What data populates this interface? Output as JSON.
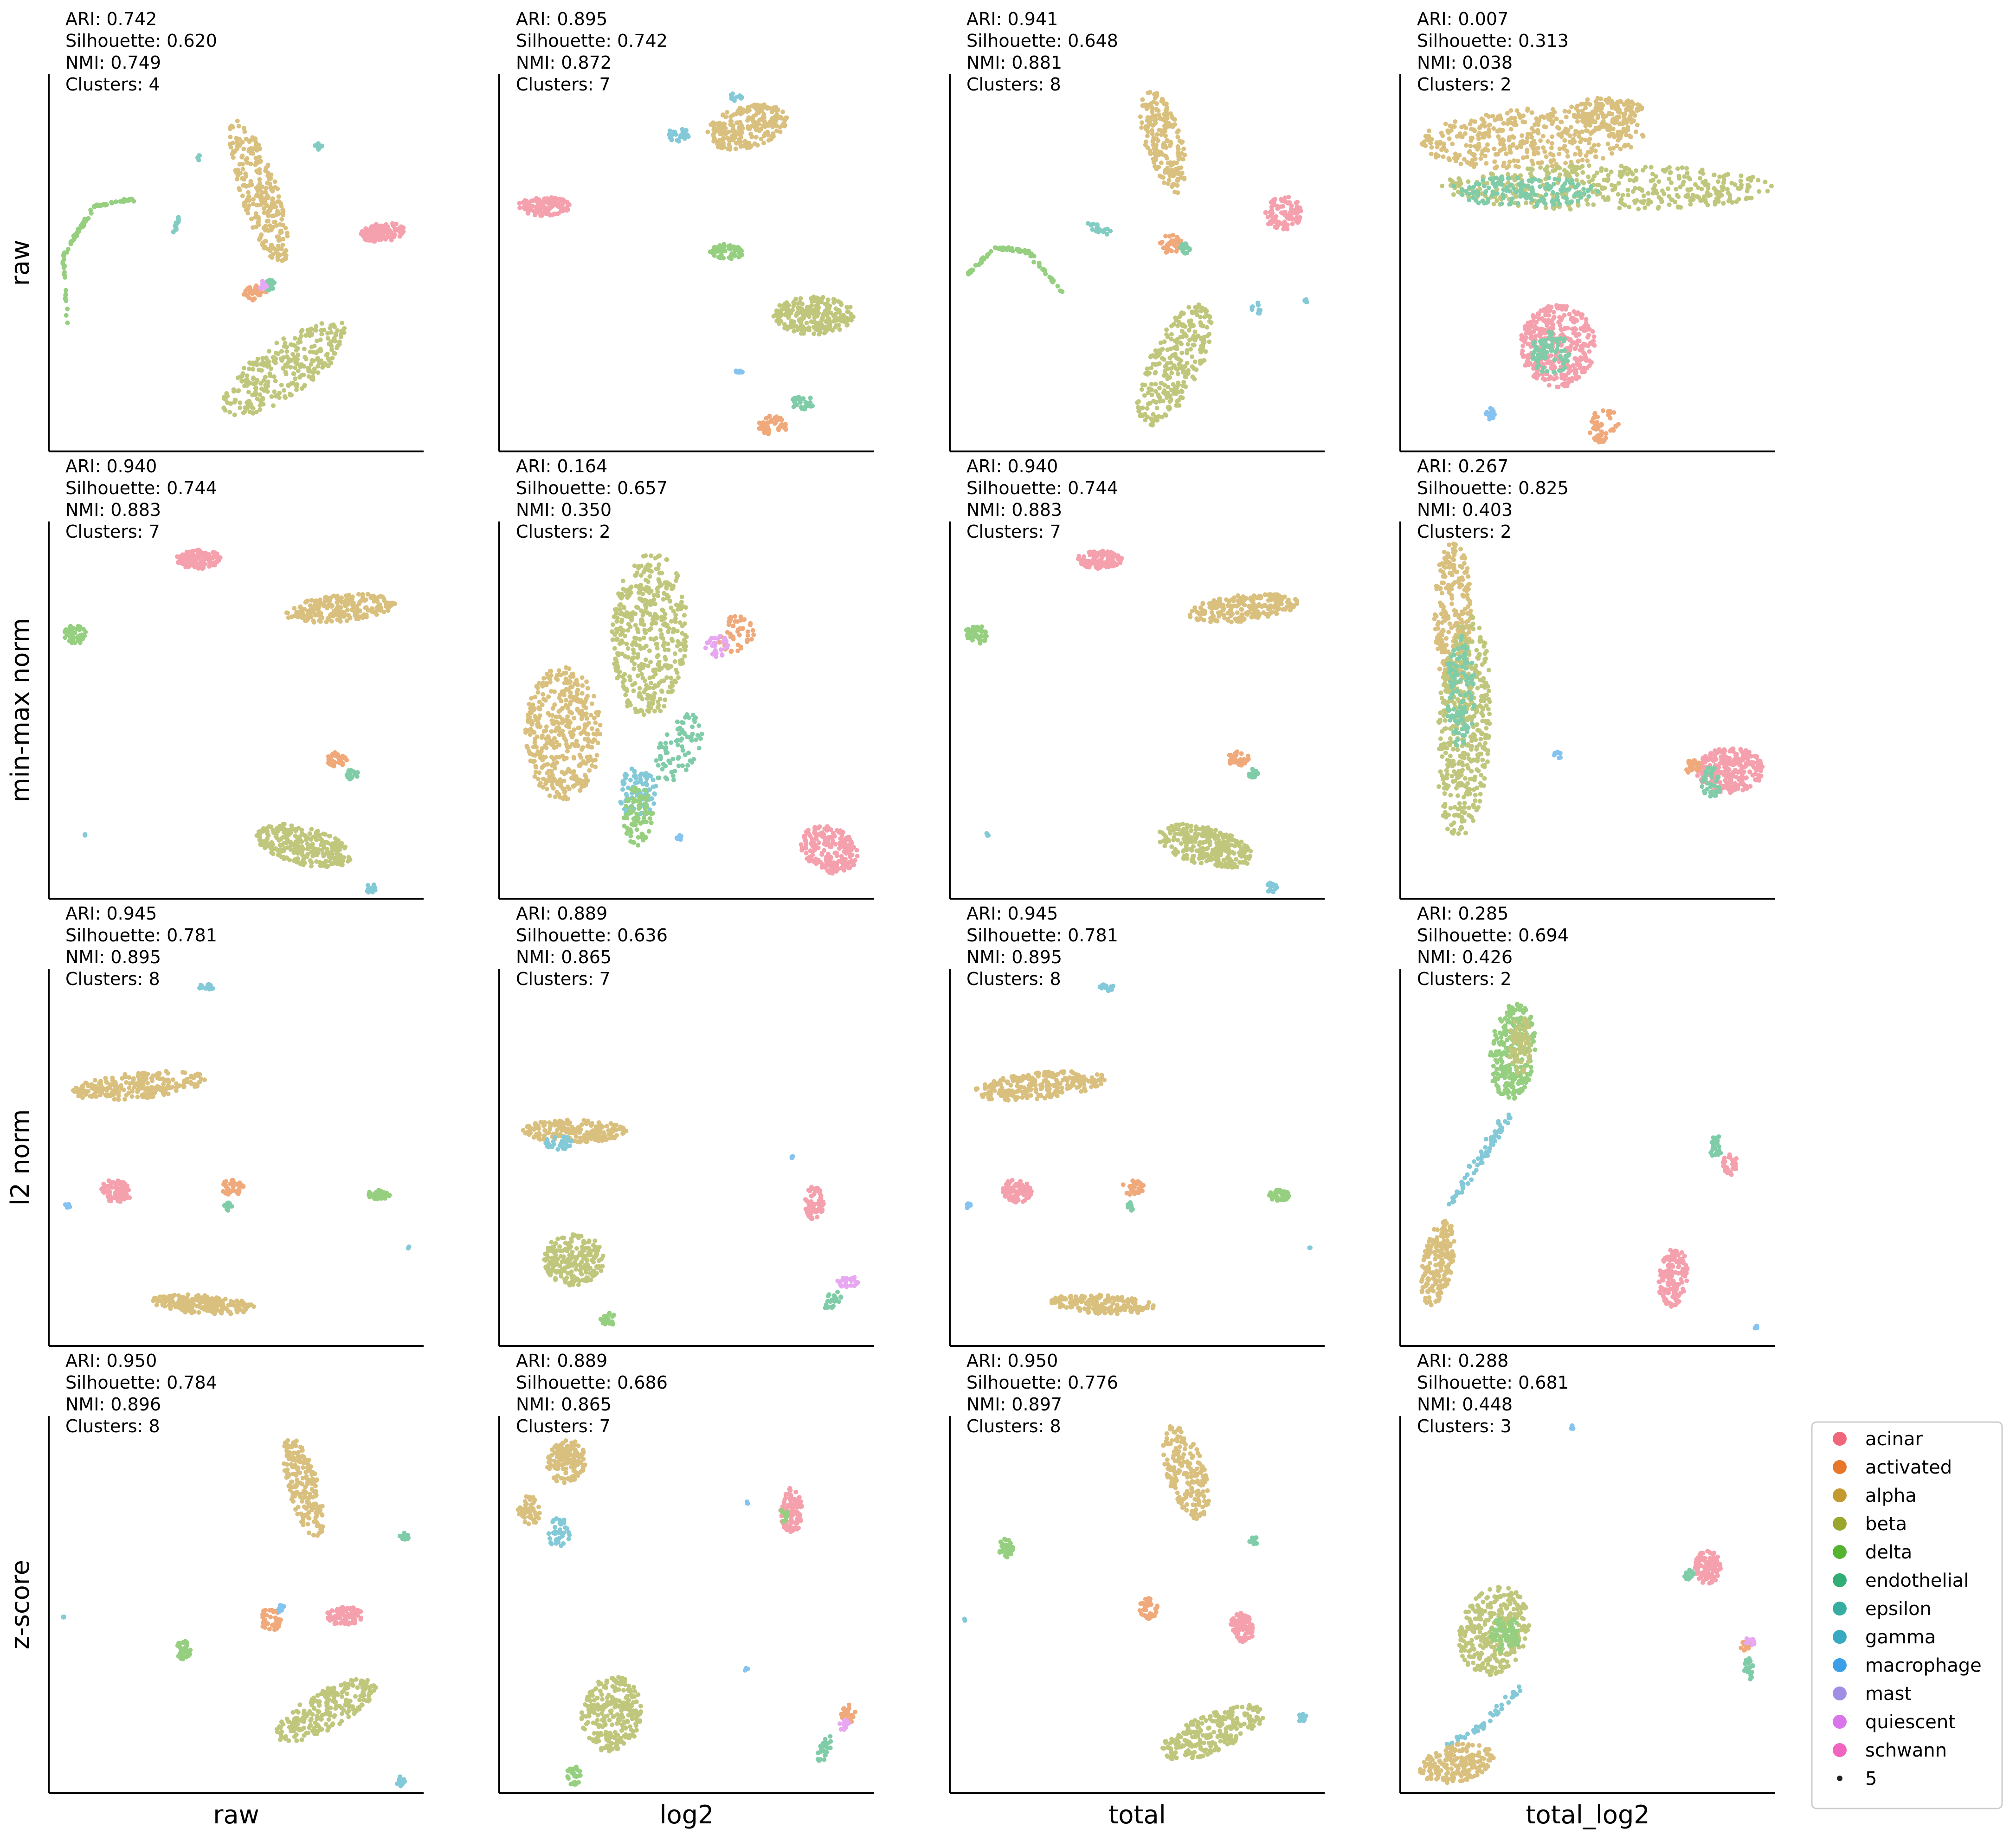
{
  "chart_data": {
    "type": "scatter",
    "row_labels": [
      "raw",
      "min-max norm",
      "l2 norm",
      "z-score"
    ],
    "col_labels": [
      "raw",
      "log2",
      "total",
      "total_log2"
    ],
    "metric_labels": {
      "ari": "ARI: ",
      "silhouette": "Silhouette: ",
      "nmi": "NMI: ",
      "clusters": "Clusters: "
    },
    "panels": [
      [
        {
          "ari": "0.742",
          "silhouette": "0.620",
          "nmi": "0.749",
          "clusters": "4"
        },
        {
          "ari": "0.895",
          "silhouette": "0.742",
          "nmi": "0.872",
          "clusters": "7"
        },
        {
          "ari": "0.941",
          "silhouette": "0.648",
          "nmi": "0.881",
          "clusters": "8"
        },
        {
          "ari": "0.007",
          "silhouette": "0.313",
          "nmi": "0.038",
          "clusters": "2"
        }
      ],
      [
        {
          "ari": "0.940",
          "silhouette": "0.744",
          "nmi": "0.883",
          "clusters": "7"
        },
        {
          "ari": "0.164",
          "silhouette": "0.657",
          "nmi": "0.350",
          "clusters": "2"
        },
        {
          "ari": "0.940",
          "silhouette": "0.744",
          "nmi": "0.883",
          "clusters": "7"
        },
        {
          "ari": "0.267",
          "silhouette": "0.825",
          "nmi": "0.403",
          "clusters": "2"
        }
      ],
      [
        {
          "ari": "0.945",
          "silhouette": "0.781",
          "nmi": "0.895",
          "clusters": "8"
        },
        {
          "ari": "0.889",
          "silhouette": "0.636",
          "nmi": "0.865",
          "clusters": "7"
        },
        {
          "ari": "0.945",
          "silhouette": "0.781",
          "nmi": "0.895",
          "clusters": "8"
        },
        {
          "ari": "0.285",
          "silhouette": "0.694",
          "nmi": "0.426",
          "clusters": "2"
        }
      ],
      [
        {
          "ari": "0.950",
          "silhouette": "0.784",
          "nmi": "0.896",
          "clusters": "8"
        },
        {
          "ari": "0.889",
          "silhouette": "0.686",
          "nmi": "0.865",
          "clusters": "7"
        },
        {
          "ari": "0.950",
          "silhouette": "0.776",
          "nmi": "0.897",
          "clusters": "8"
        },
        {
          "ari": "0.288",
          "silhouette": "0.681",
          "nmi": "0.448",
          "clusters": "3"
        }
      ]
    ],
    "legend": {
      "placement": "right of bottom-right panel",
      "entries": [
        {
          "label": "acinar",
          "color": "#f0677b"
        },
        {
          "label": "activated",
          "color": "#e8762b"
        },
        {
          "label": "alpha",
          "color": "#c39a30"
        },
        {
          "label": "beta",
          "color": "#9aa62e"
        },
        {
          "label": "delta",
          "color": "#55b332"
        },
        {
          "label": "endothelial",
          "color": "#33ad76"
        },
        {
          "label": "epsilon",
          "color": "#36ada0"
        },
        {
          "label": "gamma",
          "color": "#38a9c1"
        },
        {
          "label": "macrophage",
          "color": "#3b9fe7"
        },
        {
          "label": "mast",
          "color": "#a08ee4"
        },
        {
          "label": "quiescent",
          "color": "#d974ea"
        },
        {
          "label": "schwann",
          "color": "#f165c0"
        }
      ],
      "size_label": "5"
    }
  }
}
